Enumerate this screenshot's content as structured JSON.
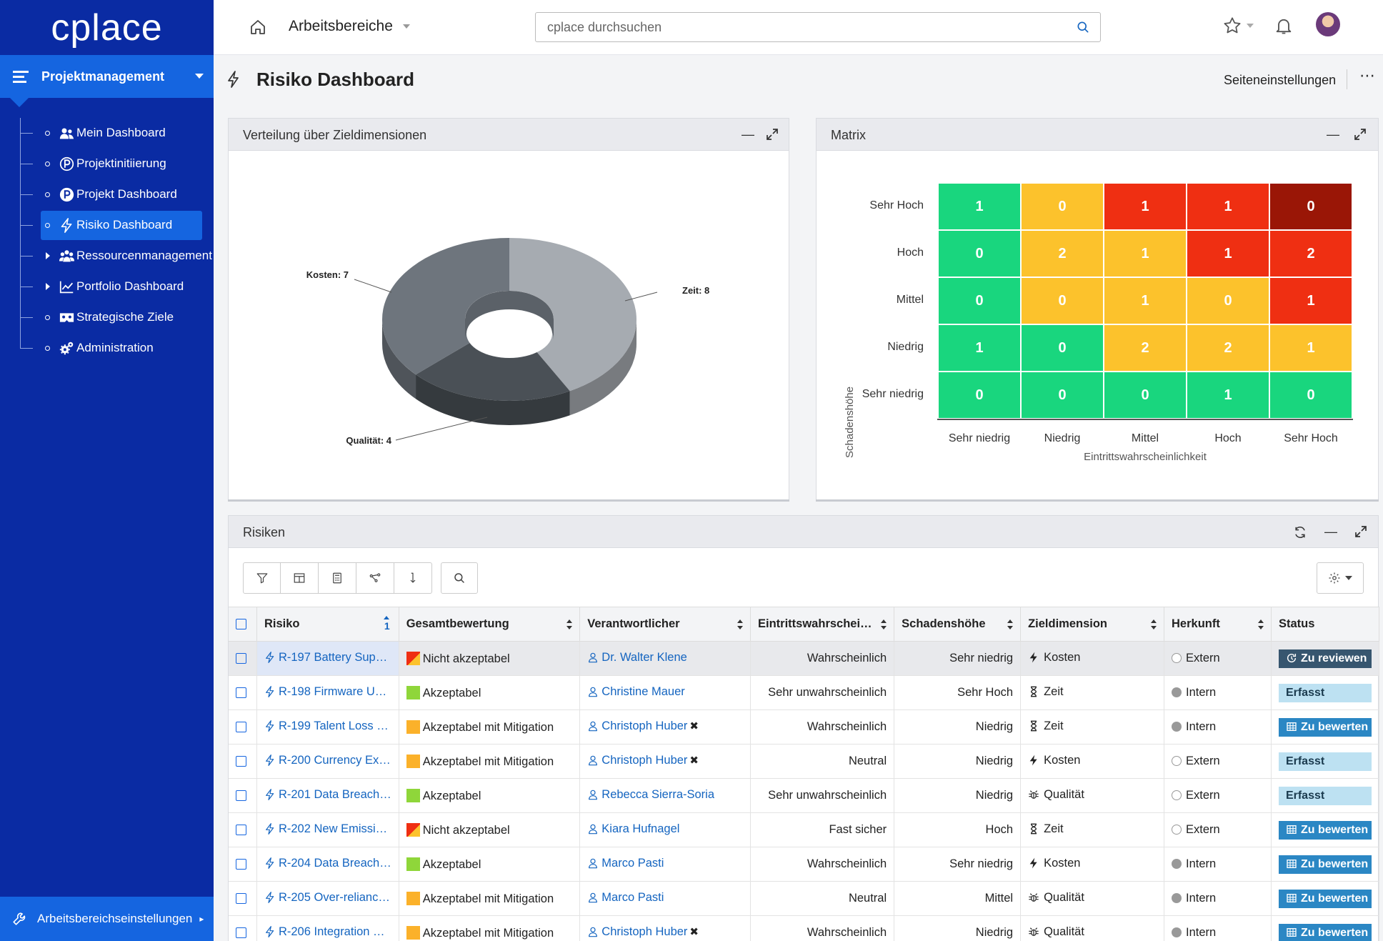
{
  "app": {
    "logo": "cplace"
  },
  "sidebar": {
    "workspace": "Projektmanagement",
    "items": [
      {
        "label": "Mein Dashboard",
        "icon": "users-icon",
        "expandable": false,
        "active": false
      },
      {
        "label": "Projektinitiierung",
        "icon": "p-circle-outline-icon",
        "expandable": false,
        "active": false
      },
      {
        "label": "Projekt Dashboard",
        "icon": "p-circle-icon",
        "expandable": false,
        "active": false
      },
      {
        "label": "Risiko Dashboard",
        "icon": "bolt-icon",
        "expandable": false,
        "active": true
      },
      {
        "label": "Ressourcenmanagement",
        "icon": "team-icon",
        "expandable": true,
        "active": false
      },
      {
        "label": "Portfolio Dashboard",
        "icon": "chart-line-icon",
        "expandable": true,
        "active": false
      },
      {
        "label": "Strategische Ziele",
        "icon": "mask-icon",
        "expandable": false,
        "active": false
      },
      {
        "label": "Administration",
        "icon": "gears-icon",
        "expandable": false,
        "active": false
      }
    ],
    "footer": "Arbeitsbereichseinstellungen"
  },
  "topbar": {
    "workspace_select": "Arbeitsbereiche",
    "search_placeholder": "cplace durchsuchen"
  },
  "page": {
    "title": "Risiko Dashboard",
    "settings_label": "Seiteneinstellungen",
    "more": "⋯"
  },
  "widgets": {
    "distribution": {
      "title": "Verteilung über Zieldimensionen"
    },
    "matrix": {
      "title": "Matrix"
    },
    "risks": {
      "title": "Risiken"
    }
  },
  "chart_data": [
    {
      "type": "pie",
      "variant": "donut-3d",
      "slices": [
        {
          "label": "Zeit: 8",
          "category": "Zeit",
          "value": 8,
          "color": "#a6abb1"
        },
        {
          "label": "Qualität: 4",
          "category": "Qualität",
          "value": 4,
          "color": "#4a5056"
        },
        {
          "label": "Kosten: 7",
          "category": "Kosten",
          "value": 7,
          "color": "#6e757d"
        }
      ]
    },
    {
      "type": "heatmap",
      "xlabel": "Eintrittswahrscheinlichkeit",
      "ylabel": "Schadenshöhe",
      "x_categories": [
        "Sehr niedrig",
        "Niedrig",
        "Mittel",
        "Hoch",
        "Sehr Hoch"
      ],
      "y_categories": [
        "Sehr Hoch",
        "Hoch",
        "Mittel",
        "Niedrig",
        "Sehr niedrig"
      ],
      "values": [
        [
          1,
          0,
          1,
          1,
          0
        ],
        [
          0,
          2,
          1,
          1,
          2
        ],
        [
          0,
          0,
          1,
          0,
          1
        ],
        [
          1,
          0,
          2,
          2,
          1
        ],
        [
          0,
          0,
          0,
          1,
          0
        ]
      ],
      "colors": [
        [
          "#19d67e",
          "#fcc22c",
          "#ef2f12",
          "#ef2f12",
          "#9a1606"
        ],
        [
          "#19d67e",
          "#fcc22c",
          "#fcc22c",
          "#ef2f12",
          "#ef2f12"
        ],
        [
          "#19d67e",
          "#fcc22c",
          "#fcc22c",
          "#fcc22c",
          "#ef2f12"
        ],
        [
          "#19d67e",
          "#19d67e",
          "#fcc22c",
          "#fcc22c",
          "#fcc22c"
        ],
        [
          "#19d67e",
          "#19d67e",
          "#19d67e",
          "#19d67e",
          "#19d67e"
        ]
      ]
    }
  ],
  "table": {
    "columns": [
      "Risiko",
      "Gesamtbewertung",
      "Verantwortlicher",
      "Eintrittswahrschei…",
      "Schadenshöhe",
      "Zieldimension",
      "Herkunft",
      "Status"
    ],
    "sort_indicator": "1",
    "rows": [
      {
        "risk": "R-197 Battery Sup…",
        "rating": "Nicht akzeptabel",
        "rating_kind": "red",
        "owner": "Dr. Walter Klene",
        "owner_x": false,
        "probability": "Wahrscheinlich",
        "impact": "Sehr niedrig",
        "dimension": "Kosten",
        "dim_icon": "bolt-icon",
        "origin": "Extern",
        "origin_kind": "hollow",
        "status": "Zu reviewen",
        "status_kind": "dark",
        "selected": true
      },
      {
        "risk": "R-198 Firmware U…",
        "rating": "Akzeptabel",
        "rating_kind": "green",
        "owner": "Christine Mauer",
        "owner_x": false,
        "probability": "Sehr unwahrscheinlich",
        "impact": "Sehr Hoch",
        "dimension": "Zeit",
        "dim_icon": "hourglass-icon",
        "origin": "Intern",
        "origin_kind": "full",
        "status": "Erfasst",
        "status_kind": "light",
        "selected": false
      },
      {
        "risk": "R-199 Talent Loss …",
        "rating": "Akzeptabel mit Mitigation",
        "rating_kind": "orange",
        "owner": "Christoph Huber",
        "owner_x": true,
        "probability": "Wahrscheinlich",
        "impact": "Niedrig",
        "dimension": "Zeit",
        "dim_icon": "hourglass-icon",
        "origin": "Intern",
        "origin_kind": "full",
        "status": "Zu bewerten",
        "status_kind": "blue",
        "selected": false
      },
      {
        "risk": "R-200 Currency Ex…",
        "rating": "Akzeptabel mit Mitigation",
        "rating_kind": "orange",
        "owner": "Christoph Huber",
        "owner_x": true,
        "probability": "Neutral",
        "impact": "Niedrig",
        "dimension": "Kosten",
        "dim_icon": "bolt-icon",
        "origin": "Extern",
        "origin_kind": "hollow",
        "status": "Erfasst",
        "status_kind": "light",
        "selected": false
      },
      {
        "risk": "R-201 Data Breach…",
        "rating": "Akzeptabel",
        "rating_kind": "green",
        "owner": "Rebecca Sierra-Soria",
        "owner_x": false,
        "probability": "Sehr unwahrscheinlich",
        "impact": "Niedrig",
        "dimension": "Qualität",
        "dim_icon": "bug-icon",
        "origin": "Extern",
        "origin_kind": "hollow",
        "status": "Erfasst",
        "status_kind": "light",
        "selected": false
      },
      {
        "risk": "R-202 New Emissi…",
        "rating": "Nicht akzeptabel",
        "rating_kind": "red",
        "owner": "Kiara Hufnagel",
        "owner_x": false,
        "probability": "Fast sicher",
        "impact": "Hoch",
        "dimension": "Zeit",
        "dim_icon": "hourglass-icon",
        "origin": "Extern",
        "origin_kind": "hollow",
        "status": "Zu bewerten",
        "status_kind": "blue",
        "selected": false
      },
      {
        "risk": "R-204 Data Breach…",
        "rating": "Akzeptabel",
        "rating_kind": "green",
        "owner": "Marco Pasti",
        "owner_x": false,
        "probability": "Wahrscheinlich",
        "impact": "Sehr niedrig",
        "dimension": "Kosten",
        "dim_icon": "bolt-icon",
        "origin": "Intern",
        "origin_kind": "full",
        "status": "Zu bewerten",
        "status_kind": "blue",
        "selected": false
      },
      {
        "risk": "R-205 Over-relianc…",
        "rating": "Akzeptabel mit Mitigation",
        "rating_kind": "orange",
        "owner": "Marco Pasti",
        "owner_x": false,
        "probability": "Neutral",
        "impact": "Mittel",
        "dimension": "Qualität",
        "dim_icon": "bug-icon",
        "origin": "Intern",
        "origin_kind": "full",
        "status": "Zu bewerten",
        "status_kind": "blue",
        "selected": false
      },
      {
        "risk": "R-206 Integration …",
        "rating": "Akzeptabel mit Mitigation",
        "rating_kind": "orange",
        "owner": "Christoph Huber",
        "owner_x": true,
        "probability": "Wahrscheinlich",
        "impact": "Niedrig",
        "dimension": "Qualität",
        "dim_icon": "bug-icon",
        "origin": "Intern",
        "origin_kind": "full",
        "status": "Zu bewerten",
        "status_kind": "blue",
        "selected": false
      }
    ]
  }
}
